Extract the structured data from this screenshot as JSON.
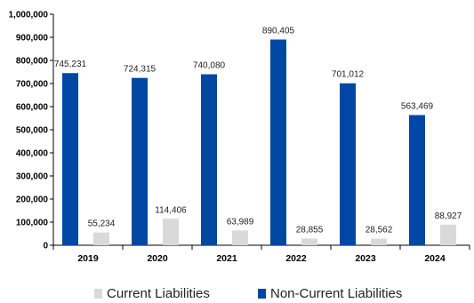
{
  "chart_data": {
    "type": "bar",
    "categories": [
      "2019",
      "2020",
      "2021",
      "2022",
      "2023",
      "2024"
    ],
    "series": [
      {
        "name": "Non-Current Liabilities",
        "color": "#0047A3",
        "values": [
          745231,
          724315,
          740080,
          890405,
          701012,
          563469
        ],
        "labels": [
          "745,231",
          "724,315",
          "740,080",
          "890,405",
          "701,012",
          "563,469"
        ]
      },
      {
        "name": "Current Liabilities",
        "color": "#D9D9D9",
        "values": [
          55234,
          114406,
          63989,
          28855,
          28562,
          88927
        ],
        "labels": [
          "55,234",
          "114,406",
          "63,989",
          "28,855",
          "28,562",
          "88,927"
        ]
      }
    ],
    "yticks": [
      "0",
      "100,000",
      "200,000",
      "300,000",
      "400,000",
      "500,000",
      "600,000",
      "700,000",
      "800,000",
      "900,000",
      "1,000,000"
    ],
    "ylim": [
      0,
      1000000
    ],
    "title": "",
    "xlabel": "",
    "ylabel": "",
    "grid": false,
    "legend_position": "bottom"
  },
  "legend": {
    "current_label": "Current Liabilities",
    "noncurrent_label": "Non-Current Liabilities"
  }
}
